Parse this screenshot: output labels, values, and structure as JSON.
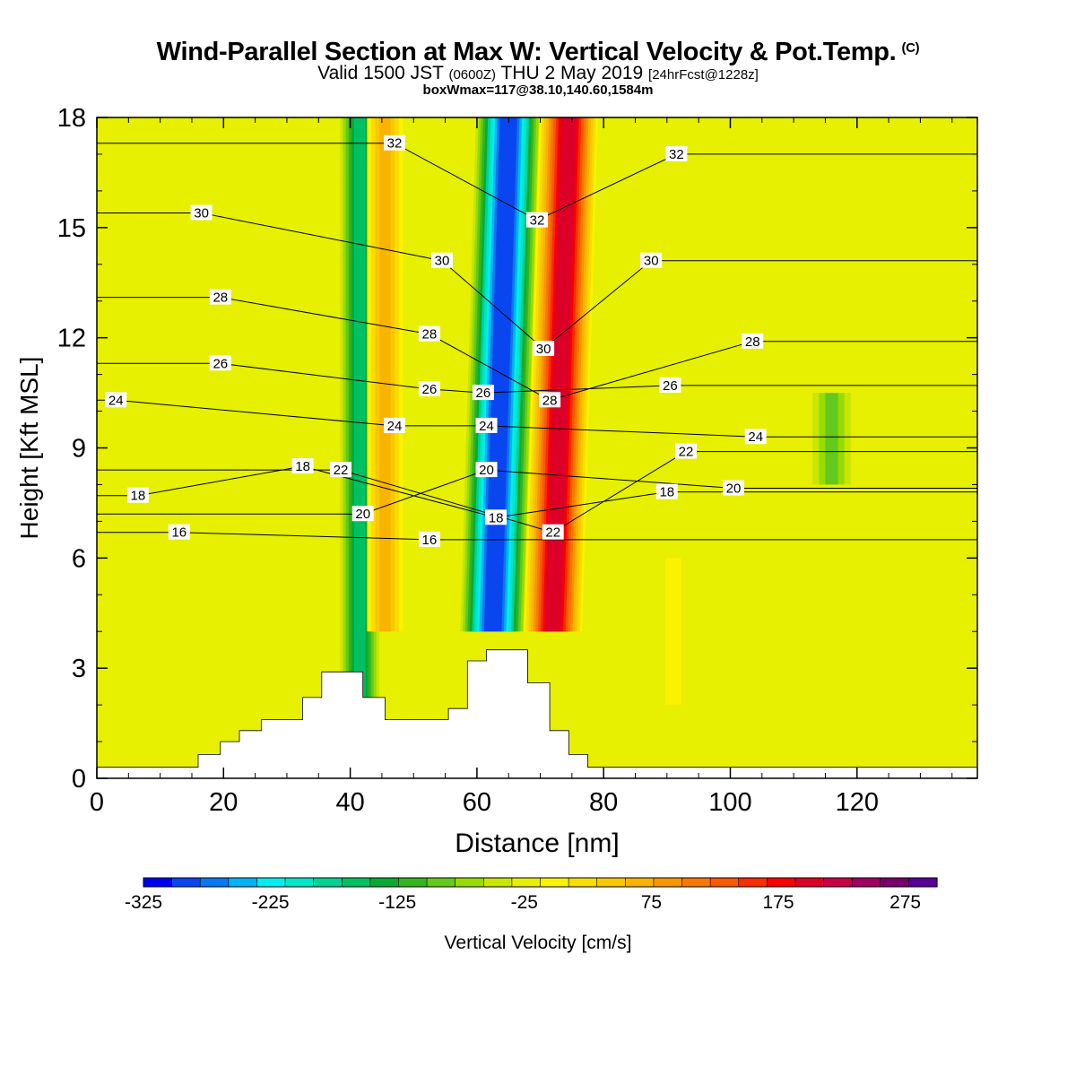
{
  "header": {
    "title": "Wind-Parallel Section at Max W: Vertical Velocity & Pot.Temp.",
    "copyright": "(C)",
    "valid_prefix": "Valid 1500 JST",
    "valid_utc": "(0600Z)",
    "valid_date": "THU 2 May 2019",
    "forecast": "[24hrFcst@1228z]",
    "box_info": "boxWmax=117@38.10,140.60,1584m"
  },
  "colors": {
    "background": "#ffffff",
    "plot_fill": "#fbf200",
    "terrain": "#ffffff",
    "contour": "#000000",
    "palette": [
      "#0000f0",
      "#0a46f0",
      "#0a78f0",
      "#00b4f5",
      "#00eef0",
      "#00e6c8",
      "#00d296",
      "#00c064",
      "#0aaa32",
      "#32b41e",
      "#64c81e",
      "#96dc00",
      "#c8e600",
      "#e6f000",
      "#fbf200",
      "#fadc00",
      "#f8c800",
      "#f8b400",
      "#f89600",
      "#f87800",
      "#f85a00",
      "#f82d00",
      "#f80000",
      "#dc0028",
      "#c80046",
      "#a00064",
      "#78006e",
      "#5a0096"
    ]
  },
  "chart_data": {
    "type": "contour",
    "title": "Wind-Parallel Section at Max W: Vertical Velocity & Pot.Temp.",
    "xlabel": "Distance [nm]",
    "ylabel": "Height [Kft MSL]",
    "xlim": [
      0,
      139
    ],
    "ylim": [
      0,
      18
    ],
    "x_ticks": [
      0,
      20,
      40,
      60,
      80,
      100,
      120
    ],
    "y_ticks": [
      0,
      3,
      6,
      9,
      12,
      15,
      18
    ],
    "terrain_profile": [
      {
        "x": 0,
        "h": 0.3
      },
      {
        "x": 16,
        "h": 0.3
      },
      {
        "x": 16,
        "h": 0.65
      },
      {
        "x": 19.5,
        "h": 0.65
      },
      {
        "x": 19.5,
        "h": 1.0
      },
      {
        "x": 22.5,
        "h": 1.0
      },
      {
        "x": 22.5,
        "h": 1.3
      },
      {
        "x": 26,
        "h": 1.3
      },
      {
        "x": 26,
        "h": 1.6
      },
      {
        "x": 32.5,
        "h": 1.6
      },
      {
        "x": 32.5,
        "h": 2.2
      },
      {
        "x": 35.5,
        "h": 2.2
      },
      {
        "x": 35.5,
        "h": 2.9
      },
      {
        "x": 42,
        "h": 2.9
      },
      {
        "x": 42,
        "h": 2.2
      },
      {
        "x": 45.5,
        "h": 2.2
      },
      {
        "x": 45.5,
        "h": 1.6
      },
      {
        "x": 55.5,
        "h": 1.6
      },
      {
        "x": 55.5,
        "h": 1.9
      },
      {
        "x": 58.5,
        "h": 1.9
      },
      {
        "x": 58.5,
        "h": 3.2
      },
      {
        "x": 61.5,
        "h": 3.2
      },
      {
        "x": 61.5,
        "h": 3.5
      },
      {
        "x": 68,
        "h": 3.5
      },
      {
        "x": 68,
        "h": 2.6
      },
      {
        "x": 71.5,
        "h": 2.6
      },
      {
        "x": 71.5,
        "h": 1.3
      },
      {
        "x": 74.5,
        "h": 1.3
      },
      {
        "x": 74.5,
        "h": 0.65
      },
      {
        "x": 77.5,
        "h": 0.65
      },
      {
        "x": 77.5,
        "h": 0.3
      },
      {
        "x": 139,
        "h": 0.3
      }
    ],
    "vertical_velocity_cm_s": {
      "units": "cm/s",
      "background": 5,
      "features": [
        {
          "x0": 38,
          "x1": 45,
          "y0": 2.2,
          "y1": 18,
          "value": -140
        },
        {
          "x0": 42,
          "x1": 49,
          "y0": 4,
          "y1": 18,
          "value": 110
        },
        {
          "x0": 57,
          "x1": 68,
          "y0": 4,
          "y1": 18,
          "value": -280
        },
        {
          "x0": 67,
          "x1": 77,
          "y0": 4,
          "y1": 18,
          "value": 260
        },
        {
          "x0": 86,
          "x1": 96,
          "y0": 2,
          "y1": 6,
          "value": 30
        },
        {
          "x0": 112,
          "x1": 120,
          "y0": 8,
          "y1": 10.5,
          "value": -60
        }
      ]
    },
    "potential_temperature_contours": [
      {
        "level": 16,
        "label_x": 13,
        "label_y": 6.7
      },
      {
        "level": 16,
        "label_x": 52.5,
        "label_y": 6.5
      },
      {
        "level": 18,
        "label_x": 6.5,
        "label_y": 7.7
      },
      {
        "level": 18,
        "label_x": 32.5,
        "label_y": 8.5
      },
      {
        "level": 18,
        "label_x": 63,
        "label_y": 7.1
      },
      {
        "level": 18,
        "label_x": 90,
        "label_y": 7.8
      },
      {
        "level": 20,
        "label_x": 42,
        "label_y": 7.2
      },
      {
        "level": 20,
        "label_x": 61.5,
        "label_y": 8.4
      },
      {
        "level": 20,
        "label_x": 100.5,
        "label_y": 7.9
      },
      {
        "level": 22,
        "label_x": 38.5,
        "label_y": 8.4
      },
      {
        "level": 22,
        "label_x": 72,
        "label_y": 6.7
      },
      {
        "level": 22,
        "label_x": 93,
        "label_y": 8.9
      },
      {
        "level": 24,
        "label_x": 3,
        "label_y": 10.3
      },
      {
        "level": 24,
        "label_x": 47,
        "label_y": 9.6
      },
      {
        "level": 24,
        "label_x": 61.5,
        "label_y": 9.6
      },
      {
        "level": 24,
        "label_x": 104,
        "label_y": 9.3
      },
      {
        "level": 26,
        "label_x": 19.5,
        "label_y": 11.3
      },
      {
        "level": 26,
        "label_x": 52.5,
        "label_y": 10.6
      },
      {
        "level": 26,
        "label_x": 61,
        "label_y": 10.5
      },
      {
        "level": 26,
        "label_x": 90.5,
        "label_y": 10.7
      },
      {
        "level": 28,
        "label_x": 19.5,
        "label_y": 13.1
      },
      {
        "level": 28,
        "label_x": 52.5,
        "label_y": 12.1
      },
      {
        "level": 28,
        "label_x": 71.5,
        "label_y": 10.3
      },
      {
        "level": 28,
        "label_x": 103.5,
        "label_y": 11.9
      },
      {
        "level": 30,
        "label_x": 16.5,
        "label_y": 15.4
      },
      {
        "level": 30,
        "label_x": 54.5,
        "label_y": 14.1
      },
      {
        "level": 30,
        "label_x": 70.5,
        "label_y": 11.7
      },
      {
        "level": 30,
        "label_x": 87.5,
        "label_y": 14.1
      },
      {
        "level": 32,
        "label_x": 47,
        "label_y": 17.3
      },
      {
        "level": 32,
        "label_x": 69.5,
        "label_y": 15.2
      },
      {
        "level": 32,
        "label_x": 91.5,
        "label_y": 17.0
      }
    ]
  },
  "colorbar": {
    "label": "Vertical Velocity [cm/s]",
    "min": -325,
    "max": 300,
    "step": 25,
    "tick_values": [
      -325,
      -225,
      -125,
      -25,
      75,
      175,
      275
    ],
    "tick_labels": [
      "-325",
      "-225",
      "-125",
      "-25",
      "75",
      "175",
      "275"
    ]
  }
}
